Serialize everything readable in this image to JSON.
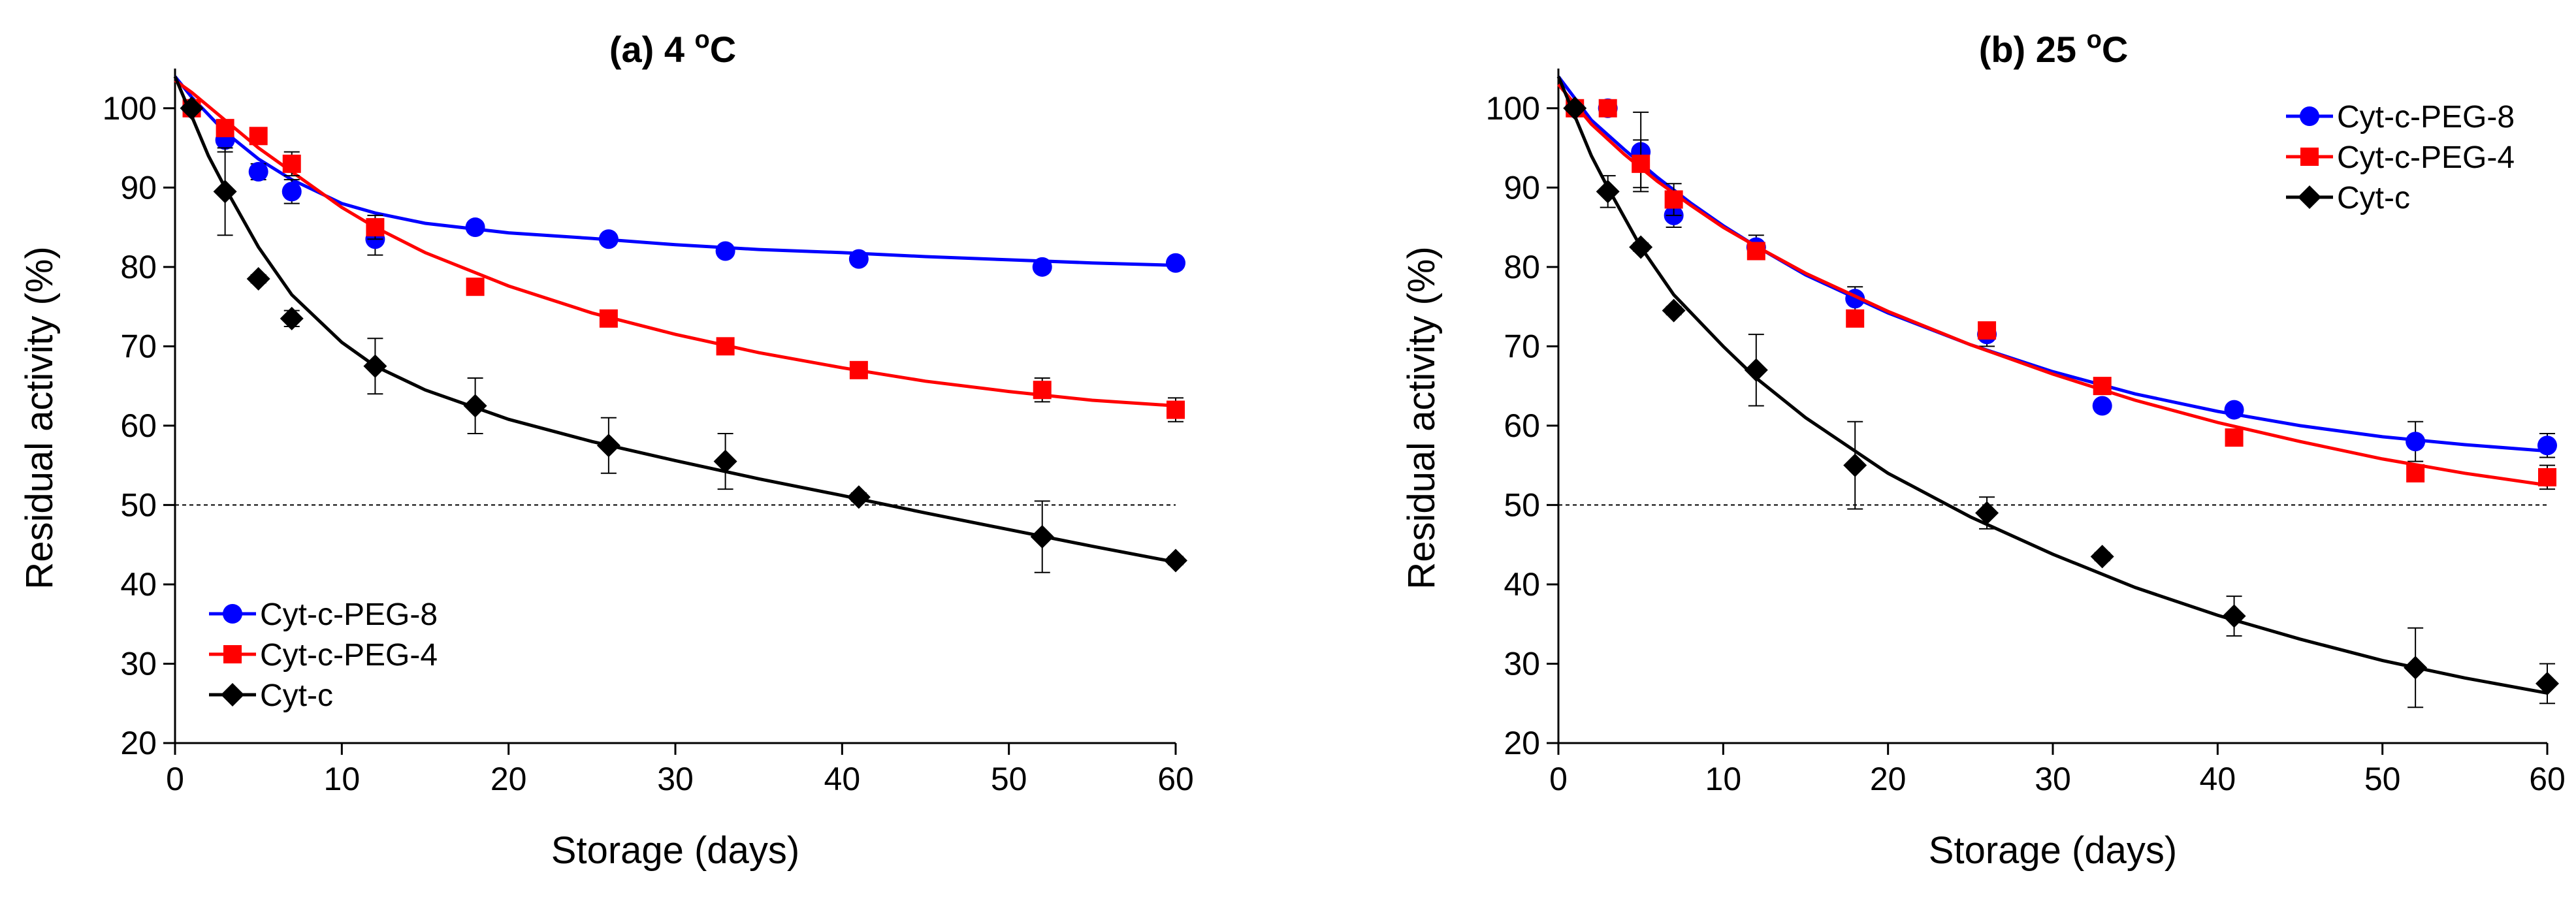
{
  "chart_data": [
    {
      "type": "scatter",
      "title_main": "(a) 4 ",
      "title_sup": "o",
      "title_unit": "C",
      "xlabel": "Storage (days)",
      "ylabel": "Residual activity (%)",
      "xlim": [
        0,
        60
      ],
      "ylim": [
        20,
        105
      ],
      "xticks": [
        "0",
        "10",
        "20",
        "30",
        "40",
        "50",
        "60"
      ],
      "yticks": [
        "20",
        "30",
        "40",
        "50",
        "60",
        "70",
        "80",
        "90",
        "100"
      ],
      "reference_line": 50,
      "legend_position": "bottom-left",
      "series": [
        {
          "name": "Cyt-c-PEG-8",
          "color": "#0000ff",
          "marker": "circle",
          "x": [
            1,
            3,
            5,
            7,
            12,
            18,
            26,
            33,
            41,
            52,
            60
          ],
          "y": [
            100,
            96,
            92,
            89.5,
            83.5,
            85,
            83.5,
            82,
            81,
            80,
            80.5
          ],
          "err": [
            0,
            1.5,
            1,
            1.5,
            2,
            0.5,
            0.5,
            0.5,
            0.5,
            0.5,
            0.5
          ],
          "fit_x": [
            0,
            1,
            3,
            5,
            7,
            10,
            12,
            15,
            20,
            25,
            30,
            35,
            40,
            45,
            50,
            55,
            60
          ],
          "fit_y": [
            104,
            101.4,
            97,
            93.6,
            91,
            88,
            86.8,
            85.5,
            84.3,
            83.6,
            82.8,
            82.2,
            81.8,
            81.3,
            80.9,
            80.5,
            80.2
          ]
        },
        {
          "name": "Cyt-c-PEG-4",
          "color": "#ff0000",
          "marker": "square",
          "x": [
            1,
            3,
            5,
            7,
            12,
            18,
            26,
            33,
            41,
            52,
            60
          ],
          "y": [
            100,
            97.5,
            96.5,
            93,
            85,
            77.5,
            73.5,
            70,
            67,
            64.5,
            62
          ],
          "err": [
            0,
            1,
            1,
            1.5,
            1.5,
            0.5,
            0.5,
            0.5,
            1,
            1.5,
            1.5
          ],
          "fit_x": [
            0,
            1,
            3,
            5,
            7,
            10,
            12,
            15,
            20,
            25,
            30,
            35,
            40,
            45,
            50,
            55,
            60
          ],
          "fit_y": [
            103.5,
            102,
            98.5,
            95,
            92,
            87.5,
            85,
            81.8,
            77.6,
            74.2,
            71.5,
            69.2,
            67.3,
            65.6,
            64.3,
            63.2,
            62.5
          ]
        },
        {
          "name": "Cyt-c",
          "color": "#000000",
          "marker": "diamond",
          "x": [
            1,
            3,
            5,
            7,
            12,
            18,
            26,
            33,
            41,
            52,
            60
          ],
          "y": [
            100,
            89.5,
            78.5,
            73.5,
            67.5,
            62.5,
            57.5,
            55.5,
            51,
            46,
            43
          ],
          "err": [
            0,
            5.5,
            0.5,
            1,
            3.5,
            3.5,
            3.5,
            3.5,
            0.5,
            4.5,
            0.5
          ],
          "fit_x": [
            0,
            1,
            2,
            3,
            5,
            7,
            10,
            12,
            15,
            20,
            25,
            30,
            35,
            40,
            45,
            50,
            55,
            60
          ],
          "fit_y": [
            104,
            99,
            94,
            90,
            82.5,
            76.5,
            70.5,
            67.5,
            64.5,
            60.8,
            58,
            55.6,
            53.3,
            51.2,
            49,
            46.9,
            44.8,
            42.8
          ]
        }
      ]
    },
    {
      "type": "scatter",
      "title_main": "(b) 25 ",
      "title_sup": "o",
      "title_unit": "C",
      "xlabel": "Storage (days)",
      "ylabel": "Residual activity (%)",
      "xlim": [
        0,
        60
      ],
      "ylim": [
        20,
        105
      ],
      "xticks": [
        "0",
        "10",
        "20",
        "30",
        "40",
        "50",
        "60"
      ],
      "yticks": [
        "20",
        "30",
        "40",
        "50",
        "60",
        "70",
        "80",
        "90",
        "100"
      ],
      "reference_line": 50,
      "legend_position": "top-right",
      "series": [
        {
          "name": "Cyt-c-PEG-8",
          "color": "#0000ff",
          "marker": "circle",
          "x": [
            1,
            3,
            5,
            7,
            12,
            18,
            26,
            33,
            41,
            52,
            60
          ],
          "y": [
            100,
            100,
            94.5,
            86.5,
            82.5,
            76,
            71.5,
            62.5,
            62,
            58,
            57.5
          ],
          "err": [
            0,
            0,
            5,
            1.5,
            1.5,
            1.5,
            1.5,
            0.5,
            0.5,
            2.5,
            1.5
          ],
          "fit_x": [
            0,
            2,
            4,
            6,
            8,
            10,
            12,
            15,
            20,
            25,
            30,
            35,
            40,
            45,
            50,
            55,
            60
          ],
          "fit_y": [
            104,
            98.5,
            94.8,
            91.3,
            88.1,
            85.2,
            82.6,
            79,
            74.2,
            70.2,
            66.8,
            64,
            61.8,
            60,
            58.6,
            57.6,
            56.8
          ]
        },
        {
          "name": "Cyt-c-PEG-4",
          "color": "#ff0000",
          "marker": "square",
          "x": [
            1,
            3,
            5,
            7,
            12,
            18,
            26,
            33,
            41,
            52,
            60
          ],
          "y": [
            100,
            100,
            93,
            88.5,
            82,
            73.5,
            72,
            65,
            58.5,
            54,
            53.5
          ],
          "err": [
            0,
            0,
            3,
            2,
            1,
            1,
            1,
            1,
            1,
            1,
            1.5
          ],
          "fit_x": [
            0,
            2,
            4,
            6,
            8,
            10,
            12,
            15,
            20,
            25,
            30,
            35,
            40,
            45,
            50,
            55,
            60
          ],
          "fit_y": [
            103,
            98,
            94.2,
            90.8,
            87.8,
            85,
            82.6,
            79.2,
            74.4,
            70.2,
            66.5,
            63.2,
            60.4,
            58,
            55.8,
            54,
            52.5
          ]
        },
        {
          "name": "Cyt-c",
          "color": "#000000",
          "marker": "diamond",
          "x": [
            1,
            3,
            5,
            7,
            12,
            18,
            26,
            33,
            41,
            52,
            60
          ],
          "y": [
            100,
            89.5,
            82.5,
            74.5,
            67,
            55,
            49,
            43.5,
            36,
            29.5,
            27.5
          ],
          "err": [
            0,
            2,
            0.5,
            0.5,
            4.5,
            5.5,
            2,
            0.5,
            2.5,
            5,
            2.5
          ],
          "fit_x": [
            0,
            1,
            2,
            3,
            5,
            7,
            10,
            12,
            15,
            20,
            25,
            30,
            35,
            40,
            45,
            50,
            55,
            60
          ],
          "fit_y": [
            104,
            99,
            94,
            90,
            82.5,
            76.5,
            70,
            66,
            61,
            54,
            48.5,
            43.8,
            39.6,
            36.1,
            33.1,
            30.4,
            28.2,
            26.3
          ]
        }
      ]
    }
  ]
}
